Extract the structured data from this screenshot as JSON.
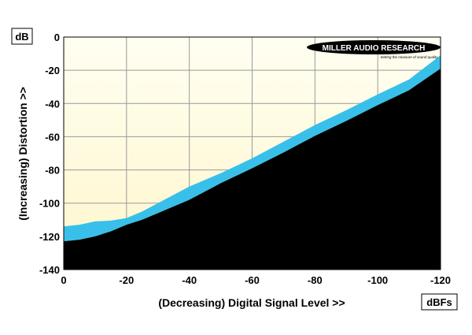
{
  "chart_data": {
    "type": "area",
    "title": "",
    "xlabel": "(Decreasing) Digital Signal Level >>",
    "ylabel": "(Increasing) Distortion >>",
    "x_unit": "dBFs",
    "y_unit": "dB",
    "xlim": [
      0,
      -120
    ],
    "ylim": [
      -140,
      0
    ],
    "x_ticks": [
      0,
      -20,
      -40,
      -60,
      -80,
      -100,
      -120
    ],
    "y_ticks": [
      0,
      -20,
      -40,
      -60,
      -80,
      -100,
      -120,
      -140
    ],
    "grid": true,
    "colors": {
      "background_top": "#fffff2",
      "background_bottom": "#fff6cc",
      "distortion_band": "#38c0ea",
      "noise_floor": "#000000",
      "grid": "#999999"
    },
    "logo": {
      "name": "MILLER AUDIO RESEARCH",
      "tagline": "Setting the measure of sound quality"
    },
    "x": [
      0,
      -5,
      -10,
      -15,
      -20,
      -25,
      -30,
      -40,
      -50,
      -60,
      -70,
      -80,
      -90,
      -100,
      -110,
      -120
    ],
    "series": [
      {
        "values_upper": [
          -114,
          -113,
          -111,
          -110.5,
          -109,
          -105,
          -100,
          -90,
          -82,
          -73,
          -63,
          -53,
          -44,
          -34.5,
          -25.5,
          -11
        ],
        "values_lower": [
          -123,
          -122,
          -120,
          -117,
          -113,
          -110,
          -106,
          -98,
          -88,
          -79,
          -69.5,
          -59.5,
          -50.5,
          -41,
          -32,
          -19
        ]
      }
    ]
  }
}
